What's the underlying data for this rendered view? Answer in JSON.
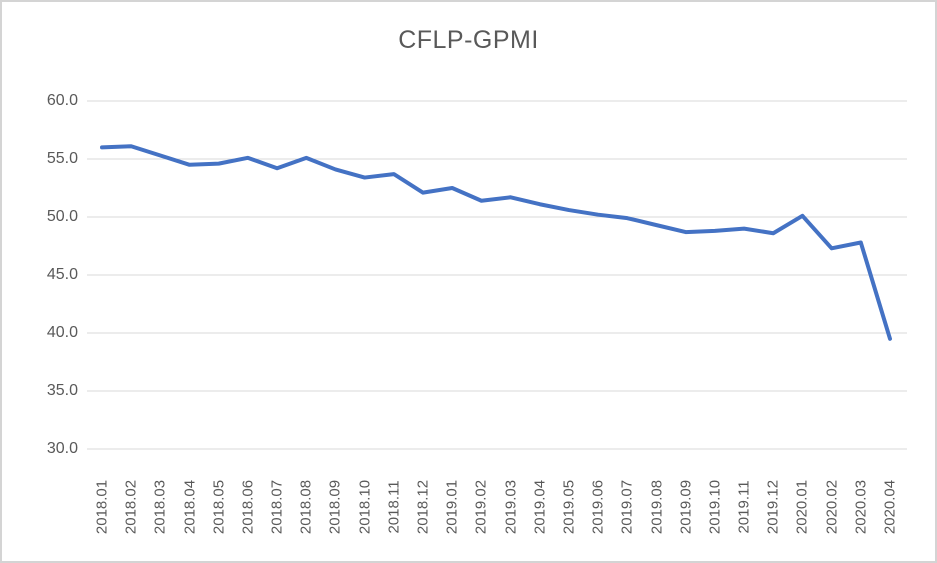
{
  "window": {
    "background_color": "#ffffff",
    "border_color": "#d4d4d4"
  },
  "chart_data": {
    "type": "line",
    "title": "CFLP-GPMI",
    "legend": "none",
    "grid": "horizontal",
    "line_color": "#4472C4",
    "gridline_color": "#D9D9D9",
    "text_color": "#595959",
    "ylim": [
      30,
      60
    ],
    "y_tick_step": 5,
    "y_tick_labels": [
      "60.0",
      "55.0",
      "50.0",
      "45.0",
      "40.0",
      "35.0",
      "30.0"
    ],
    "categories": [
      "2018.01",
      "2018.02",
      "2018.03",
      "2018.04",
      "2018.05",
      "2018.06",
      "2018.07",
      "2018.08",
      "2018.09",
      "2018.10",
      "2018.11",
      "2018.12",
      "2019.01",
      "2019.02",
      "2019.03",
      "2019.04",
      "2019.05",
      "2019.06",
      "2019.07",
      "2019.08",
      "2019.09",
      "2019.10",
      "2019.11",
      "2019.12",
      "2020.01",
      "2020.02",
      "2020.03",
      "2020.04"
    ],
    "series": [
      {
        "name": "CFLP-GPMI",
        "values": [
          56.0,
          56.1,
          55.3,
          54.5,
          54.6,
          55.1,
          54.2,
          55.1,
          54.1,
          53.4,
          53.7,
          52.1,
          52.5,
          51.4,
          51.7,
          51.1,
          50.6,
          50.2,
          49.9,
          49.3,
          48.7,
          48.8,
          49.0,
          48.6,
          50.1,
          47.3,
          47.8,
          39.5
        ]
      }
    ]
  }
}
